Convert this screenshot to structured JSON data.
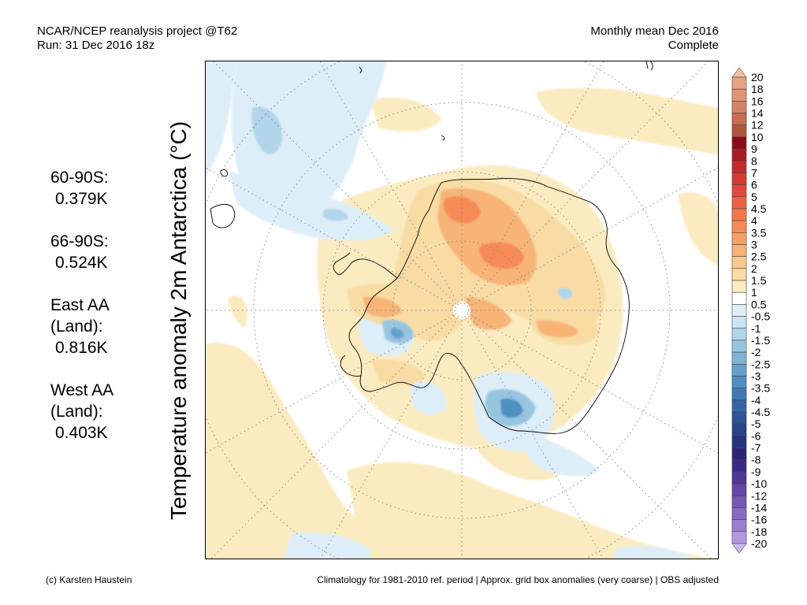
{
  "header": {
    "source": "NCAR/NCEP reanalysis project @T62",
    "run": "Run: 31 Dec 2016 18z",
    "period": "Monthly mean Dec 2016",
    "status": "Complete"
  },
  "y_axis_label": "Temperature anomaly 2m Antarctica (°C)",
  "stats": [
    {
      "label": "60-90S:",
      "value": "0.379K"
    },
    {
      "label": "66-90S:",
      "value": "0.524K"
    },
    {
      "label": "East AA (Land):",
      "value": "0.816K"
    },
    {
      "label": "West AA (Land):",
      "value": "0.403K"
    }
  ],
  "colorbar": {
    "labels": [
      "20",
      "18",
      "16",
      "14",
      "12",
      "10",
      "9",
      "8",
      "7",
      "6",
      "5",
      "4.5",
      "4",
      "3.5",
      "3",
      "2.5",
      "2",
      "1.5",
      "1",
      "0.5",
      "-0.5",
      "-1",
      "-1.5",
      "-2",
      "-2.5",
      "-3",
      "-3.5",
      "-4",
      "-4.5",
      "-5",
      "-6",
      "-7",
      "-8",
      "-9",
      "-10",
      "-12",
      "-14",
      "-16",
      "-18",
      "-20"
    ],
    "colors": [
      "#f2c1a6",
      "#e6a486",
      "#de9575",
      "#d48468",
      "#c96b50",
      "#b45539",
      "#8c0a1a",
      "#a81c26",
      "#c42a2c",
      "#d73a32",
      "#e4483a",
      "#ee6142",
      "#f3774b",
      "#f68b56",
      "#f6a065",
      "#f7b476",
      "#f8c98c",
      "#f8dca4",
      "#fbebc0",
      "#ffffff",
      "#ddeef8",
      "#c8e3f3",
      "#b1d5ea",
      "#97c5e0",
      "#7cb3d6",
      "#64a1cd",
      "#508fc2",
      "#4079b3",
      "#3366a6",
      "#2b549a",
      "#26458c",
      "#24337e",
      "#2a2477",
      "#3b2a84",
      "#4d3893",
      "#6148a4",
      "#7458b4",
      "#8869c4",
      "#9d7ed2",
      "#b39ae0",
      "#c9b9ee"
    ]
  },
  "footer": {
    "credit": "(c) Karsten Haustein",
    "note": "Climatology for 1981-2010 ref. period | Approx. grid box anomalies (very coarse) | OBS adjusted"
  }
}
